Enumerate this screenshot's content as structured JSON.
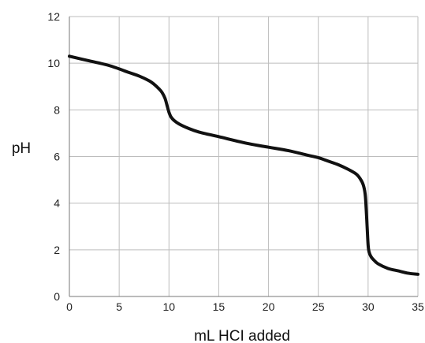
{
  "chart_data": {
    "type": "line",
    "title": "",
    "xlabel": "mL HCI added",
    "ylabel": "pH",
    "xlim": [
      0,
      35
    ],
    "ylim": [
      0,
      12
    ],
    "xticks": [
      0,
      5,
      10,
      15,
      20,
      25,
      30,
      35
    ],
    "yticks": [
      0,
      2,
      4,
      6,
      8,
      10,
      12
    ],
    "grid": true,
    "series": [
      {
        "x": [
          0,
          2,
          4,
          6,
          7,
          8,
          8.5,
          9,
          9.3,
          9.6,
          9.8,
          10,
          10.2,
          10.5,
          11,
          12,
          13,
          15,
          18,
          20,
          22,
          24,
          25,
          26,
          27,
          28,
          28.8,
          29.2,
          29.5,
          29.7,
          29.8,
          29.9,
          30.0,
          30.1,
          30.3,
          30.6,
          31,
          32,
          33,
          34,
          35
        ],
        "y": [
          10.3,
          10.1,
          9.9,
          9.6,
          9.45,
          9.25,
          9.1,
          8.9,
          8.75,
          8.5,
          8.2,
          7.9,
          7.7,
          7.55,
          7.4,
          7.2,
          7.05,
          6.85,
          6.55,
          6.4,
          6.25,
          6.05,
          5.95,
          5.8,
          5.65,
          5.45,
          5.25,
          5.05,
          4.8,
          4.4,
          3.8,
          3.0,
          2.2,
          1.9,
          1.7,
          1.55,
          1.4,
          1.2,
          1.1,
          1.0,
          0.95
        ]
      }
    ]
  }
}
